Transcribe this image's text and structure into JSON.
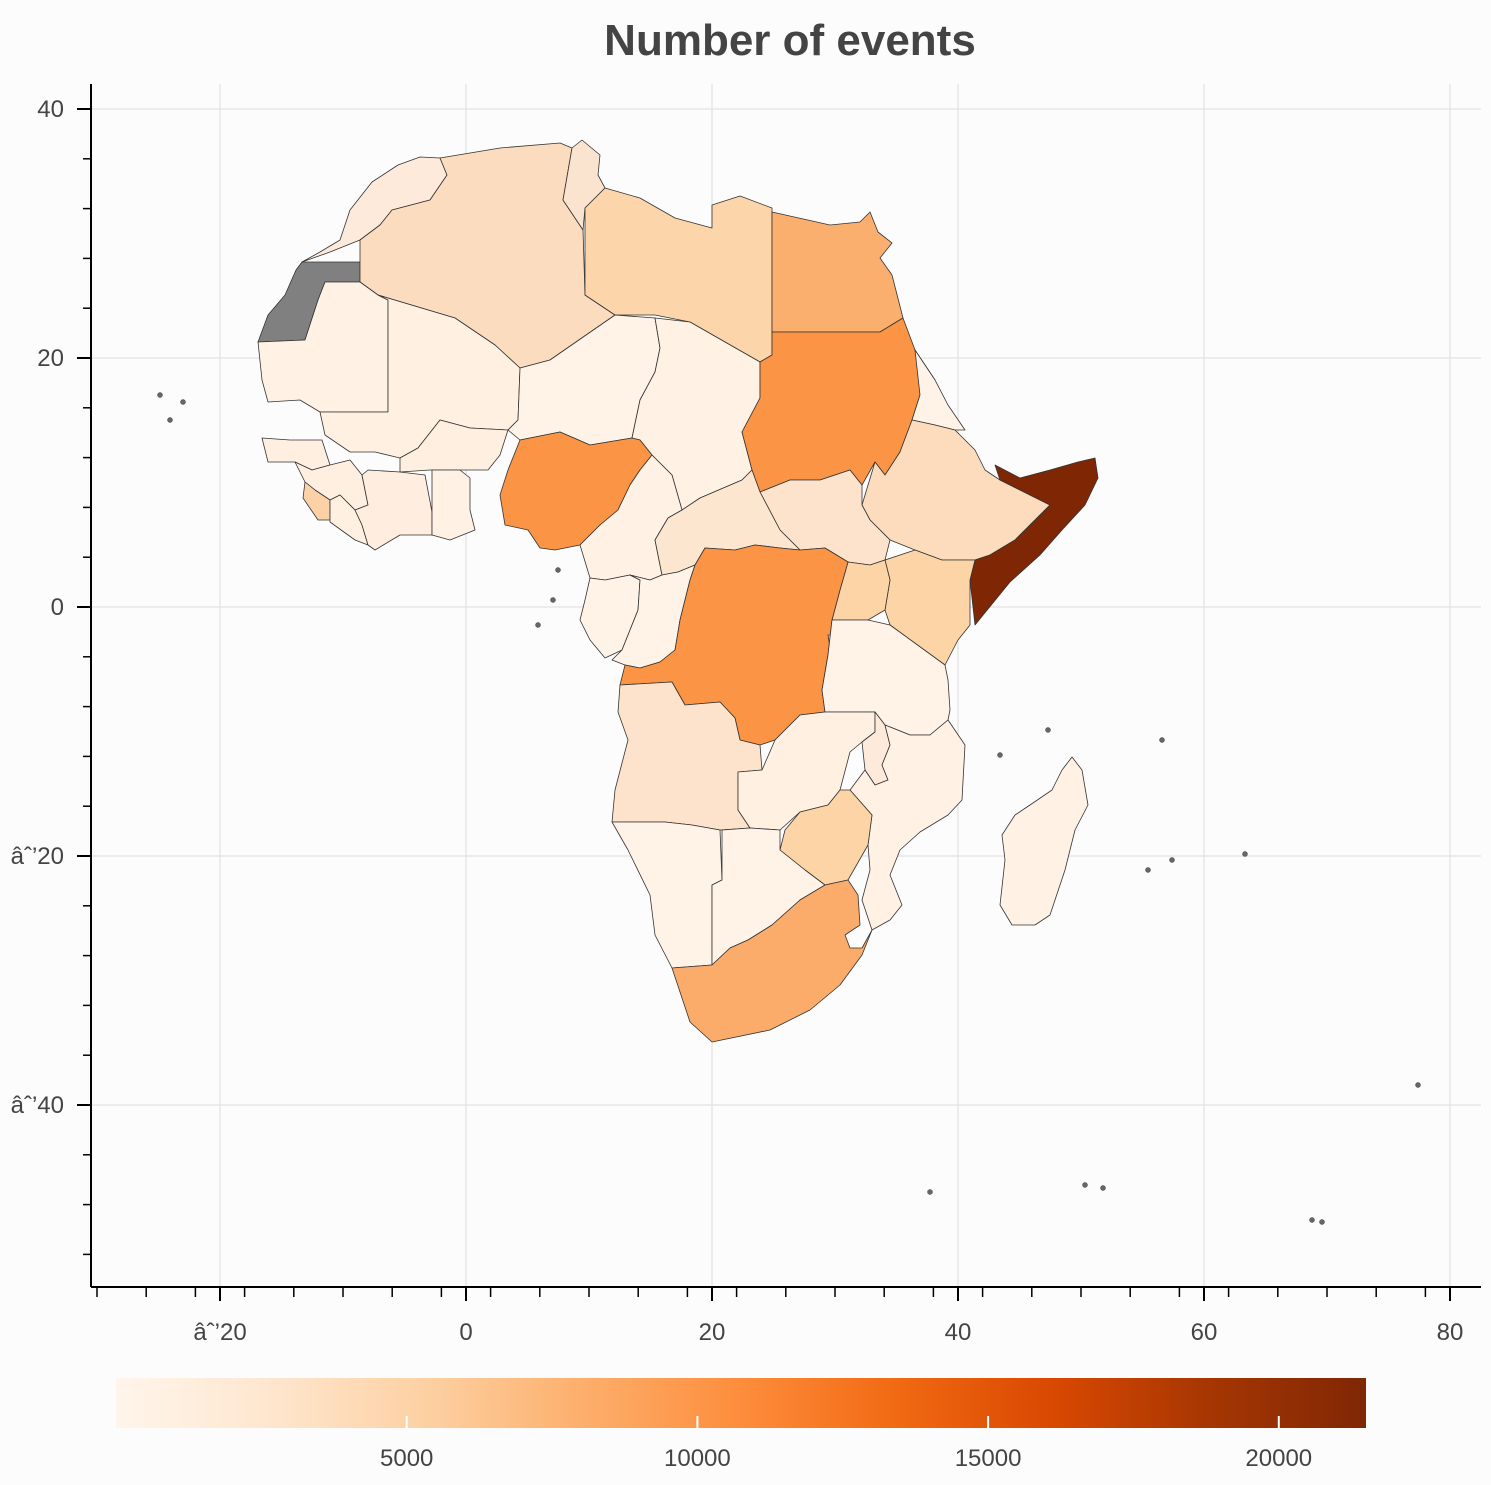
{
  "title": "Number of events",
  "axes": {
    "x_ticks": [
      "âˆ’20",
      "0",
      "20",
      "40",
      "60",
      "80"
    ],
    "y_ticks": [
      "40",
      "20",
      "0",
      "âˆ’20",
      "âˆ’40"
    ]
  },
  "colorbar": {
    "ticks": [
      "5000",
      "10000",
      "15000",
      "20000"
    ],
    "min": 0,
    "max": 21500,
    "colors": [
      "#fff5eb",
      "#fee6ce",
      "#fdd0a2",
      "#fdae6b",
      "#fd8d3c",
      "#f16913",
      "#d94801",
      "#a63603",
      "#7f2704"
    ]
  },
  "colors": {
    "no_data": "#808080",
    "grid": "#e6e6e6",
    "border": "#333333"
  },
  "countries": [
    {
      "name": "Western Sahara",
      "fill": "#808080"
    },
    {
      "name": "Morocco",
      "fill": "#feeadb"
    },
    {
      "name": "Algeria",
      "fill": "#fbdcbf"
    },
    {
      "name": "Tunisia",
      "fill": "#fbe4cf"
    },
    {
      "name": "Libya",
      "fill": "#fcd5aa"
    },
    {
      "name": "Egypt",
      "fill": "#fbaf6f"
    },
    {
      "name": "Mauritania",
      "fill": "#fff1e4"
    },
    {
      "name": "Mali",
      "fill": "#fff0e1"
    },
    {
      "name": "Niger",
      "fill": "#fff2e6"
    },
    {
      "name": "Chad",
      "fill": "#fff1e4"
    },
    {
      "name": "Sudan",
      "fill": "#fb9444"
    },
    {
      "name": "Eritrea",
      "fill": "#fff2e6"
    },
    {
      "name": "Ethiopia",
      "fill": "#fcdcbc"
    },
    {
      "name": "Somalia",
      "fill": "#7f2704"
    },
    {
      "name": "South Sudan",
      "fill": "#fde3cb"
    },
    {
      "name": "Kenya",
      "fill": "#fcd4a6"
    },
    {
      "name": "Uganda",
      "fill": "#fcd4a6"
    },
    {
      "name": "Senegal",
      "fill": "#feefe0"
    },
    {
      "name": "Guinea",
      "fill": "#ffefe1"
    },
    {
      "name": "Sierra Leone",
      "fill": "#fcd1a5"
    },
    {
      "name": "Liberia",
      "fill": "#fff0e2"
    },
    {
      "name": "Ivory Coast",
      "fill": "#ffeedf"
    },
    {
      "name": "Burkina Faso",
      "fill": "#ffefe1"
    },
    {
      "name": "Ghana",
      "fill": "#fff1e4"
    },
    {
      "name": "Nigeria",
      "fill": "#fb9444"
    },
    {
      "name": "Cameroon",
      "fill": "#fff1e4"
    },
    {
      "name": "Central African Republic",
      "fill": "#fde6cf"
    },
    {
      "name": "Gabon",
      "fill": "#fff3e8"
    },
    {
      "name": "Congo",
      "fill": "#fff2e6"
    },
    {
      "name": "DR Congo",
      "fill": "#fb9444"
    },
    {
      "name": "Burundi",
      "fill": "#fcd4a6"
    },
    {
      "name": "Tanzania",
      "fill": "#fff2e6"
    },
    {
      "name": "Angola",
      "fill": "#fde3cb"
    },
    {
      "name": "Zambia",
      "fill": "#fff0e2"
    },
    {
      "name": "Malawi",
      "fill": "#feeadb"
    },
    {
      "name": "Mozambique",
      "fill": "#fff1e4"
    },
    {
      "name": "Zimbabwe",
      "fill": "#fcd4a6"
    },
    {
      "name": "Namibia",
      "fill": "#fff2e6"
    },
    {
      "name": "Botswana",
      "fill": "#fff2e6"
    },
    {
      "name": "South Africa",
      "fill": "#fbac6a"
    },
    {
      "name": "Madagascar",
      "fill": "#fff1e4"
    }
  ]
}
